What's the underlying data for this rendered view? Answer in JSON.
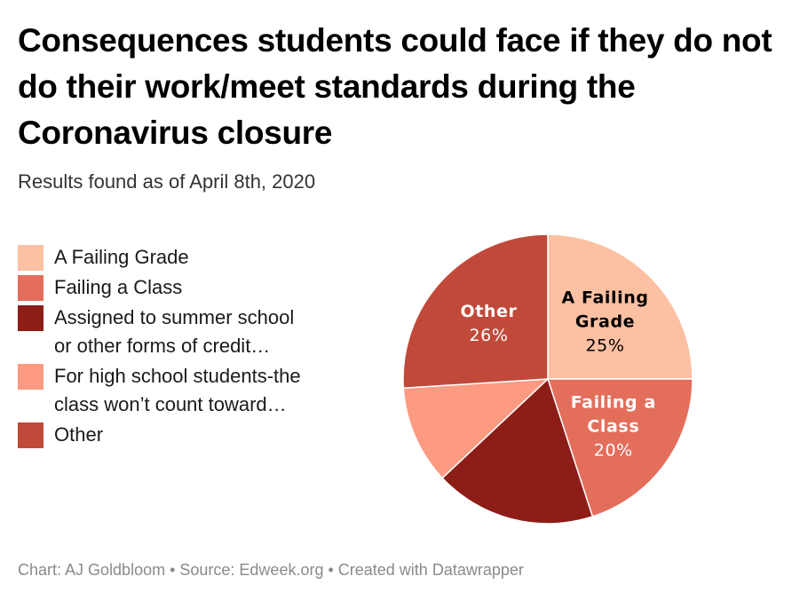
{
  "title": "Consequences students could face if they do not do their work/meet standards during the Coronavirus closure",
  "subtitle": "Results found as of April 8th, 2020",
  "footer": "Chart: AJ Goldbloom • Source: Edweek.org • Created with Datawrapper",
  "chart_data": {
    "type": "pie",
    "title": "Consequences students could face if they do not do their work/meet standards during the Coronavirus closure",
    "subtitle": "Results found as of April 8th, 2020",
    "legend_position": "left",
    "start": "top, clockwise",
    "slices": [
      {
        "label": "A Failing Grade",
        "short_label": [
          "A Failing",
          "Grade"
        ],
        "value": 25,
        "value_label": "25%",
        "color": "#fcc0a2",
        "label_color": "#000000",
        "labeled": true
      },
      {
        "label": "Failing a Class",
        "short_label": [
          "Failing a",
          "Class"
        ],
        "value": 20,
        "value_label": "20%",
        "color": "#e36e5c",
        "label_color": "#ffffff",
        "labeled": true
      },
      {
        "label": "Assigned to summer school or other forms of credit…",
        "value": 18,
        "color": "#8c1d17",
        "labeled": false
      },
      {
        "label": "For high school students-the class won’t count toward…",
        "value": 11,
        "color": "#fc9a82",
        "labeled": false
      },
      {
        "label": "Other",
        "short_label": [
          "Other"
        ],
        "value": 26,
        "value_label": "26%",
        "color": "#c0493a",
        "label_color": "#ffffff",
        "labeled": true
      }
    ]
  }
}
